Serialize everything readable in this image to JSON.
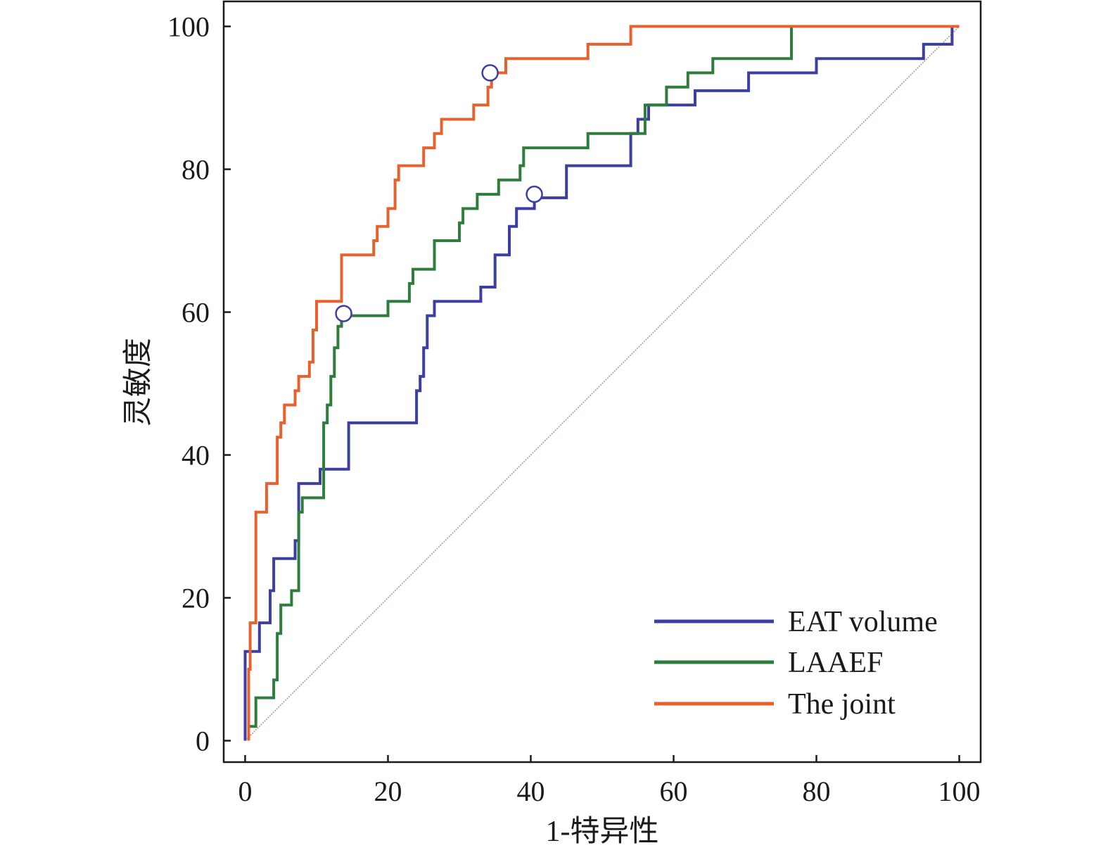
{
  "chart_data": {
    "type": "line",
    "title": "",
    "xlabel": "1-特异性",
    "ylabel": "灵敏度",
    "xlim": [
      -3,
      103
    ],
    "ylim": [
      -3,
      103.5
    ],
    "x_ticks": [
      0,
      20,
      40,
      60,
      80,
      100
    ],
    "y_ticks": [
      0,
      20,
      40,
      60,
      80,
      100
    ],
    "x_tick_labels": [
      "0",
      "20",
      "40",
      "60",
      "80",
      "100"
    ],
    "y_tick_labels": [
      "0",
      "20",
      "40",
      "60",
      "80",
      "100"
    ],
    "grid": false,
    "legend_position": "bottom-right",
    "diagonal": {
      "points": [
        [
          0,
          0
        ],
        [
          100,
          100
        ]
      ],
      "color": "#c48f96"
    },
    "series": [
      {
        "name": "EAT volume",
        "color": "#3b3fa3",
        "cutoff": [
          40.5,
          76.5
        ],
        "points": [
          [
            0,
            0
          ],
          [
            0,
            12.5
          ],
          [
            2,
            12.5
          ],
          [
            2,
            16.5
          ],
          [
            3.5,
            16.5
          ],
          [
            3.5,
            21
          ],
          [
            4,
            21
          ],
          [
            4,
            25.5
          ],
          [
            7,
            25.5
          ],
          [
            7,
            28
          ],
          [
            7.5,
            28
          ],
          [
            7.5,
            36
          ],
          [
            10.5,
            36
          ],
          [
            10.5,
            38
          ],
          [
            14.5,
            38
          ],
          [
            14.5,
            44.5
          ],
          [
            24,
            44.5
          ],
          [
            24,
            49
          ],
          [
            24.5,
            49
          ],
          [
            24.5,
            51
          ],
          [
            25,
            51
          ],
          [
            25,
            55
          ],
          [
            25.5,
            55
          ],
          [
            25.5,
            59.5
          ],
          [
            26.5,
            59.5
          ],
          [
            26.5,
            61.5
          ],
          [
            33,
            61.5
          ],
          [
            33,
            63.5
          ],
          [
            35,
            63.5
          ],
          [
            35,
            68
          ],
          [
            37,
            68
          ],
          [
            37,
            72
          ],
          [
            38,
            72
          ],
          [
            38,
            74.5
          ],
          [
            40.5,
            74.5
          ],
          [
            40.5,
            76
          ],
          [
            45,
            76
          ],
          [
            45,
            80.5
          ],
          [
            54,
            80.5
          ],
          [
            54,
            85
          ],
          [
            55,
            85
          ],
          [
            55,
            87
          ],
          [
            56.5,
            87
          ],
          [
            56.5,
            89
          ],
          [
            63,
            89
          ],
          [
            63,
            91
          ],
          [
            70.5,
            91
          ],
          [
            70.5,
            93.5
          ],
          [
            80,
            93.5
          ],
          [
            80,
            95.5
          ],
          [
            95,
            95.5
          ],
          [
            95,
            97.5
          ],
          [
            99,
            97.5
          ],
          [
            99,
            100
          ],
          [
            100,
            100
          ]
        ]
      },
      {
        "name": "LAAEF",
        "color": "#2e7d3c",
        "cutoff": [
          13.8,
          59.8
        ],
        "points": [
          [
            0.5,
            0
          ],
          [
            0.5,
            2
          ],
          [
            1.5,
            2
          ],
          [
            1.5,
            6
          ],
          [
            4,
            6
          ],
          [
            4,
            8.5
          ],
          [
            4.5,
            8.5
          ],
          [
            4.5,
            15
          ],
          [
            5,
            15
          ],
          [
            5,
            19
          ],
          [
            6.5,
            19
          ],
          [
            6.5,
            21
          ],
          [
            7.5,
            21
          ],
          [
            7.5,
            32
          ],
          [
            8,
            32
          ],
          [
            8,
            34
          ],
          [
            11,
            34
          ],
          [
            11,
            44.5
          ],
          [
            11.5,
            44.5
          ],
          [
            11.5,
            47
          ],
          [
            12,
            47
          ],
          [
            12,
            51
          ],
          [
            12.5,
            51
          ],
          [
            12.5,
            55
          ],
          [
            13,
            55
          ],
          [
            13,
            58
          ],
          [
            13.5,
            58
          ],
          [
            13.5,
            59.5
          ],
          [
            20,
            59.5
          ],
          [
            20,
            61.5
          ],
          [
            23,
            61.5
          ],
          [
            23,
            64
          ],
          [
            23.5,
            64
          ],
          [
            23.5,
            66
          ],
          [
            26.5,
            66
          ],
          [
            26.5,
            70
          ],
          [
            30,
            70
          ],
          [
            30,
            72.5
          ],
          [
            30.5,
            72.5
          ],
          [
            30.5,
            74.5
          ],
          [
            32.5,
            74.5
          ],
          [
            32.5,
            76.5
          ],
          [
            35.5,
            76.5
          ],
          [
            35.5,
            78.5
          ],
          [
            38.5,
            78.5
          ],
          [
            38.5,
            80.5
          ],
          [
            39,
            80.5
          ],
          [
            39,
            83
          ],
          [
            48,
            83
          ],
          [
            48,
            85
          ],
          [
            56,
            85
          ],
          [
            56,
            89
          ],
          [
            59,
            89
          ],
          [
            59,
            91.5
          ],
          [
            62,
            91.5
          ],
          [
            62,
            93.5
          ],
          [
            65.5,
            93.5
          ],
          [
            65.5,
            95.5
          ],
          [
            76.5,
            95.5
          ],
          [
            76.5,
            100
          ],
          [
            100,
            100
          ]
        ]
      },
      {
        "name": "The joint",
        "color": "#e8602c",
        "cutoff": [
          34.3,
          93.5
        ],
        "points": [
          [
            0.5,
            0
          ],
          [
            0.5,
            10
          ],
          [
            0.7,
            10
          ],
          [
            0.7,
            16.5
          ],
          [
            1.5,
            16.5
          ],
          [
            1.5,
            32
          ],
          [
            3,
            32
          ],
          [
            3,
            36
          ],
          [
            4.5,
            36
          ],
          [
            4.5,
            42.5
          ],
          [
            5,
            42.5
          ],
          [
            5,
            44.5
          ],
          [
            5.5,
            44.5
          ],
          [
            5.5,
            47
          ],
          [
            7,
            47
          ],
          [
            7,
            49
          ],
          [
            7.5,
            49
          ],
          [
            7.5,
            51
          ],
          [
            9,
            51
          ],
          [
            9,
            53
          ],
          [
            9.5,
            53
          ],
          [
            9.5,
            57.5
          ],
          [
            10,
            57.5
          ],
          [
            10,
            61.5
          ],
          [
            13.5,
            61.5
          ],
          [
            13.5,
            68
          ],
          [
            18,
            68
          ],
          [
            18,
            70
          ],
          [
            18.5,
            70
          ],
          [
            18.5,
            72
          ],
          [
            20,
            72
          ],
          [
            20,
            74.5
          ],
          [
            21,
            74.5
          ],
          [
            21,
            78.5
          ],
          [
            21.5,
            78.5
          ],
          [
            21.5,
            80.5
          ],
          [
            25,
            80.5
          ],
          [
            25,
            83
          ],
          [
            26.5,
            83
          ],
          [
            26.5,
            85
          ],
          [
            27.5,
            85
          ],
          [
            27.5,
            87
          ],
          [
            32,
            87
          ],
          [
            32,
            89
          ],
          [
            34,
            89
          ],
          [
            34,
            91.5
          ],
          [
            34.5,
            91.5
          ],
          [
            34.5,
            93.5
          ],
          [
            36.5,
            93.5
          ],
          [
            36.5,
            95.5
          ],
          [
            48,
            95.5
          ],
          [
            48,
            97.5
          ],
          [
            54,
            97.5
          ],
          [
            54,
            100
          ],
          [
            100,
            100
          ]
        ]
      }
    ]
  }
}
